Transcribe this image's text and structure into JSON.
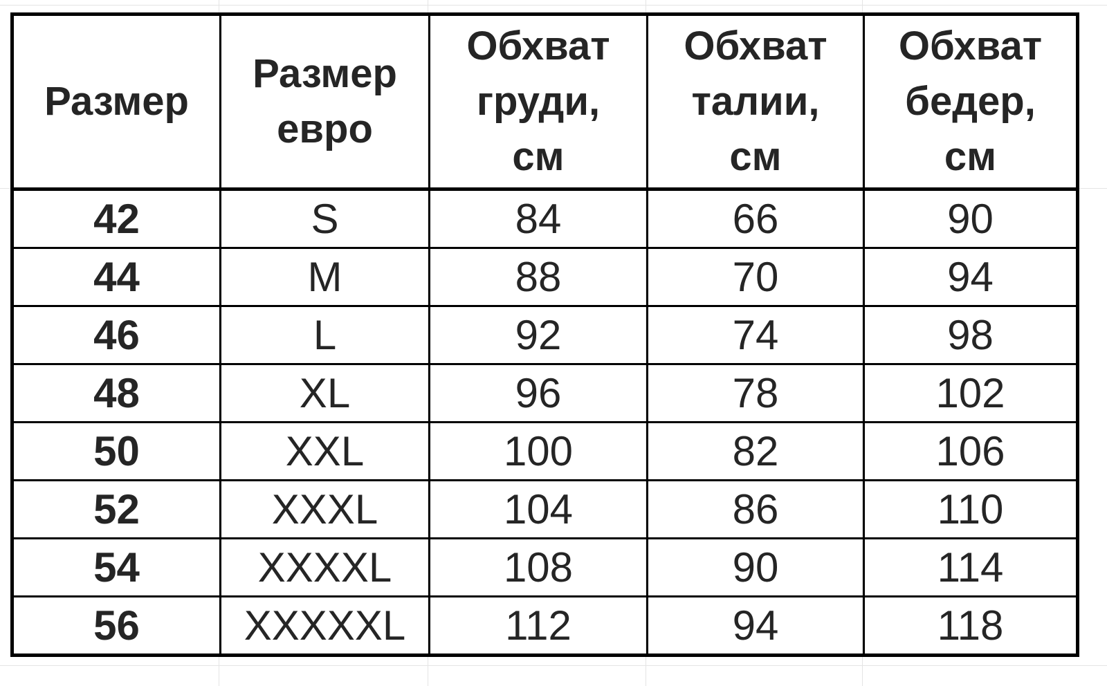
{
  "table": {
    "headers": [
      [
        "Размер"
      ],
      [
        "Размер",
        "евро"
      ],
      [
        "Обхват",
        "груди,",
        "см"
      ],
      [
        "Обхват",
        "талии,",
        "см"
      ],
      [
        "Обхват",
        "бедер,",
        "см"
      ]
    ],
    "rows": [
      [
        "42",
        "S",
        "84",
        "66",
        "90"
      ],
      [
        "44",
        "M",
        "88",
        "70",
        "94"
      ],
      [
        "46",
        "L",
        "92",
        "74",
        "98"
      ],
      [
        "48",
        "XL",
        "96",
        "78",
        "102"
      ],
      [
        "50",
        "XXL",
        "100",
        "82",
        "106"
      ],
      [
        "52",
        "XXXL",
        "104",
        "86",
        "110"
      ],
      [
        "54",
        "XXXXL",
        "108",
        "90",
        "114"
      ],
      [
        "56",
        "XXXXXL",
        "112",
        "94",
        "118"
      ]
    ]
  }
}
